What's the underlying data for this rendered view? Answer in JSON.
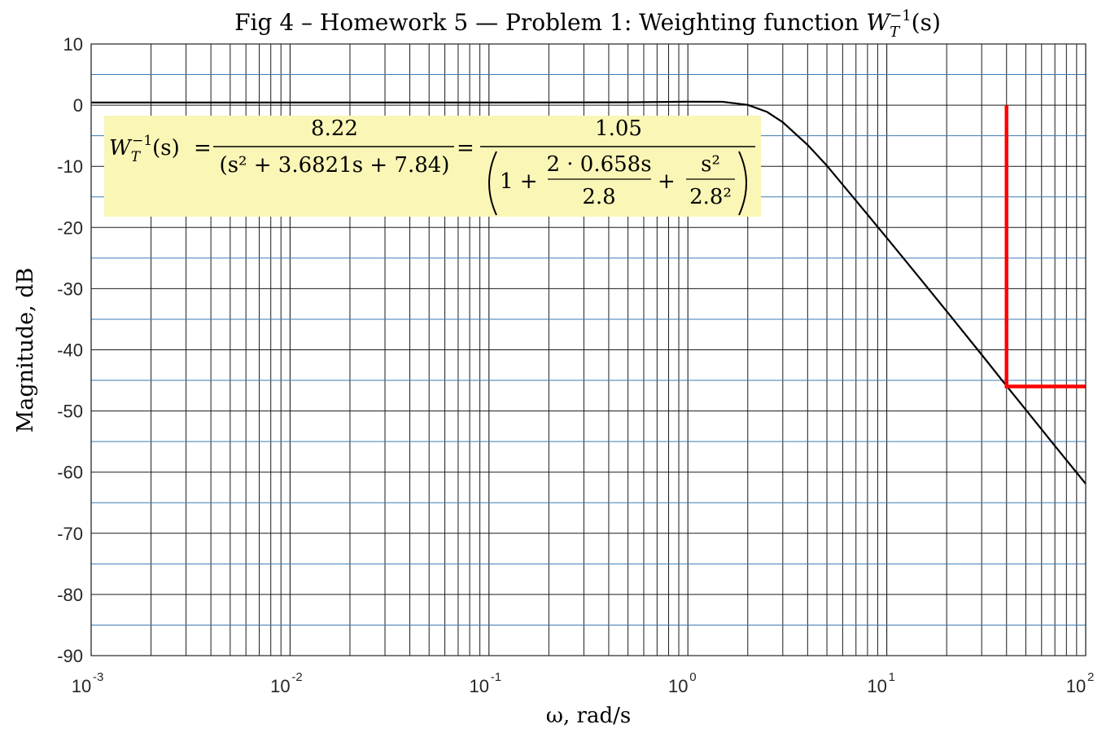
{
  "chart_data": {
    "type": "line",
    "title": "Fig 4 – Homework 5 — Problem 1: Weighting function W_T^{-1}(s)",
    "title_parts": {
      "prefix": "Fig 4 – Homework 5 — Problem 1: Weighting function ",
      "symbol": "W",
      "sub": "T",
      "sup": "−1",
      "arg": "(s)"
    },
    "xlabel": "ω,  rad/s",
    "ylabel": "Magnitude, dB",
    "x_scale": "log",
    "xlim": [
      0.001,
      100
    ],
    "ylim": [
      -90,
      10
    ],
    "grid": true,
    "x_ticks": [
      {
        "base": "10",
        "exp": "-3",
        "value": 0.001
      },
      {
        "base": "10",
        "exp": "-2",
        "value": 0.01
      },
      {
        "base": "10",
        "exp": "-1",
        "value": 0.1
      },
      {
        "base": "10",
        "exp": "0",
        "value": 1
      },
      {
        "base": "10",
        "exp": "1",
        "value": 10
      },
      {
        "base": "10",
        "exp": "2",
        "value": 100
      }
    ],
    "y_ticks": [
      "10",
      "0",
      "-10",
      "-20",
      "-30",
      "-40",
      "-50",
      "-60",
      "-70",
      "-80",
      "-90"
    ],
    "y_minor_ticks": [
      5,
      -5,
      -15,
      -25,
      -35,
      -45,
      -55,
      -65,
      -75,
      -85
    ],
    "series": [
      {
        "color": "#000000",
        "x": [
          0.001,
          0.01,
          0.1,
          0.5,
          1.0,
          1.5,
          2.0,
          2.5,
          3.0,
          4.0,
          5.0,
          7.0,
          10.0,
          15.0,
          20.0,
          30.0,
          40.0,
          50.0,
          70.0,
          100.0
        ],
        "y": [
          0.42,
          0.42,
          0.43,
          0.47,
          0.56,
          0.54,
          0.04,
          -1.1,
          -2.8,
          -6.5,
          -9.9,
          -15.6,
          -21.7,
          -28.7,
          -33.7,
          -40.8,
          -45.9,
          -49.8,
          -55.7,
          -61.9
        ]
      }
    ],
    "annotations": {
      "spec_line": {
        "color": "#ff0000",
        "x_corner": 40,
        "y_top": 0,
        "y_level": -46,
        "x_end": 100
      },
      "equation_box": {
        "background": "#faf6b6",
        "lhs": {
          "symbol": "W",
          "sub": "T",
          "sup": "−1",
          "arg": "(s)"
        },
        "eq": "=",
        "frac1": {
          "num": "8.22",
          "den": "(s² + 3.6821s + 7.84)"
        },
        "frac2": {
          "num": "1.05",
          "inner_one": "1 +",
          "f1_num": "2 · 0.658s",
          "f1_den": "2.8",
          "plus": "+",
          "f2_num": "s²",
          "f2_den": "2.8²"
        }
      }
    }
  }
}
